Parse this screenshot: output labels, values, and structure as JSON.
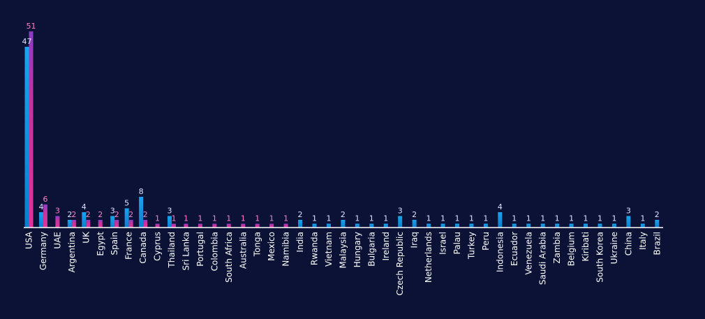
{
  "chart_data": {
    "type": "bar",
    "title": "",
    "xlabel": "",
    "ylabel": "",
    "ylim": [
      0,
      51
    ],
    "grid": false,
    "legend": "none",
    "colors": {
      "background": "#0b1236",
      "series_a": "#0a8fdc",
      "series_a_top": "#1aa3ee",
      "series_b": "#d6359c",
      "series_b_top": "#7b3fc2",
      "label_a": "#dde3ff",
      "label_b": "#ff7fc8",
      "axis": "#ffffff"
    },
    "categories": [
      "USA",
      "Germany",
      "UAE",
      "Argentina",
      "UK",
      "Egypt",
      "Spain",
      "France",
      "Canada",
      "Cyprus",
      "Thailand",
      "Sri Lanka",
      "Portugal",
      "Colombia",
      "South Africa",
      "Australia",
      "Tonga",
      "Mexico",
      "Namibia",
      "India",
      "Rwanda",
      "Vietnam",
      "Malaysia",
      "Hungary",
      "Bulgaria",
      "Ireland",
      "Czech Republic",
      "Iraq",
      "Netherlands",
      "Israel",
      "Palau",
      "Turkey",
      "Peru",
      "Indonesia",
      "Ecuador",
      "Venezuela",
      "Saudi Arabia",
      "Zambia",
      "Belgium",
      "Kiribati",
      "South Korea",
      "Ukraine",
      "China",
      "Italy",
      "Brazil"
    ],
    "series": [
      {
        "values": [
          47,
          4,
          null,
          2,
          4,
          null,
          3,
          5,
          8,
          null,
          3,
          null,
          null,
          null,
          null,
          null,
          null,
          null,
          null,
          2,
          1,
          1,
          2,
          1,
          1,
          1,
          3,
          2,
          1,
          1,
          1,
          1,
          1,
          4,
          1,
          1,
          1,
          1,
          1,
          1,
          1,
          1,
          3,
          1,
          2
        ]
      },
      {
        "values": [
          51,
          6,
          3,
          2,
          2,
          2,
          2,
          2,
          2,
          1,
          1,
          1,
          1,
          1,
          1,
          1,
          1,
          1,
          1,
          null,
          null,
          null,
          null,
          null,
          null,
          null,
          null,
          null,
          null,
          null,
          null,
          null,
          null,
          null,
          null,
          null,
          null,
          null,
          null,
          null,
          null,
          null,
          null,
          null,
          null
        ]
      }
    ]
  }
}
